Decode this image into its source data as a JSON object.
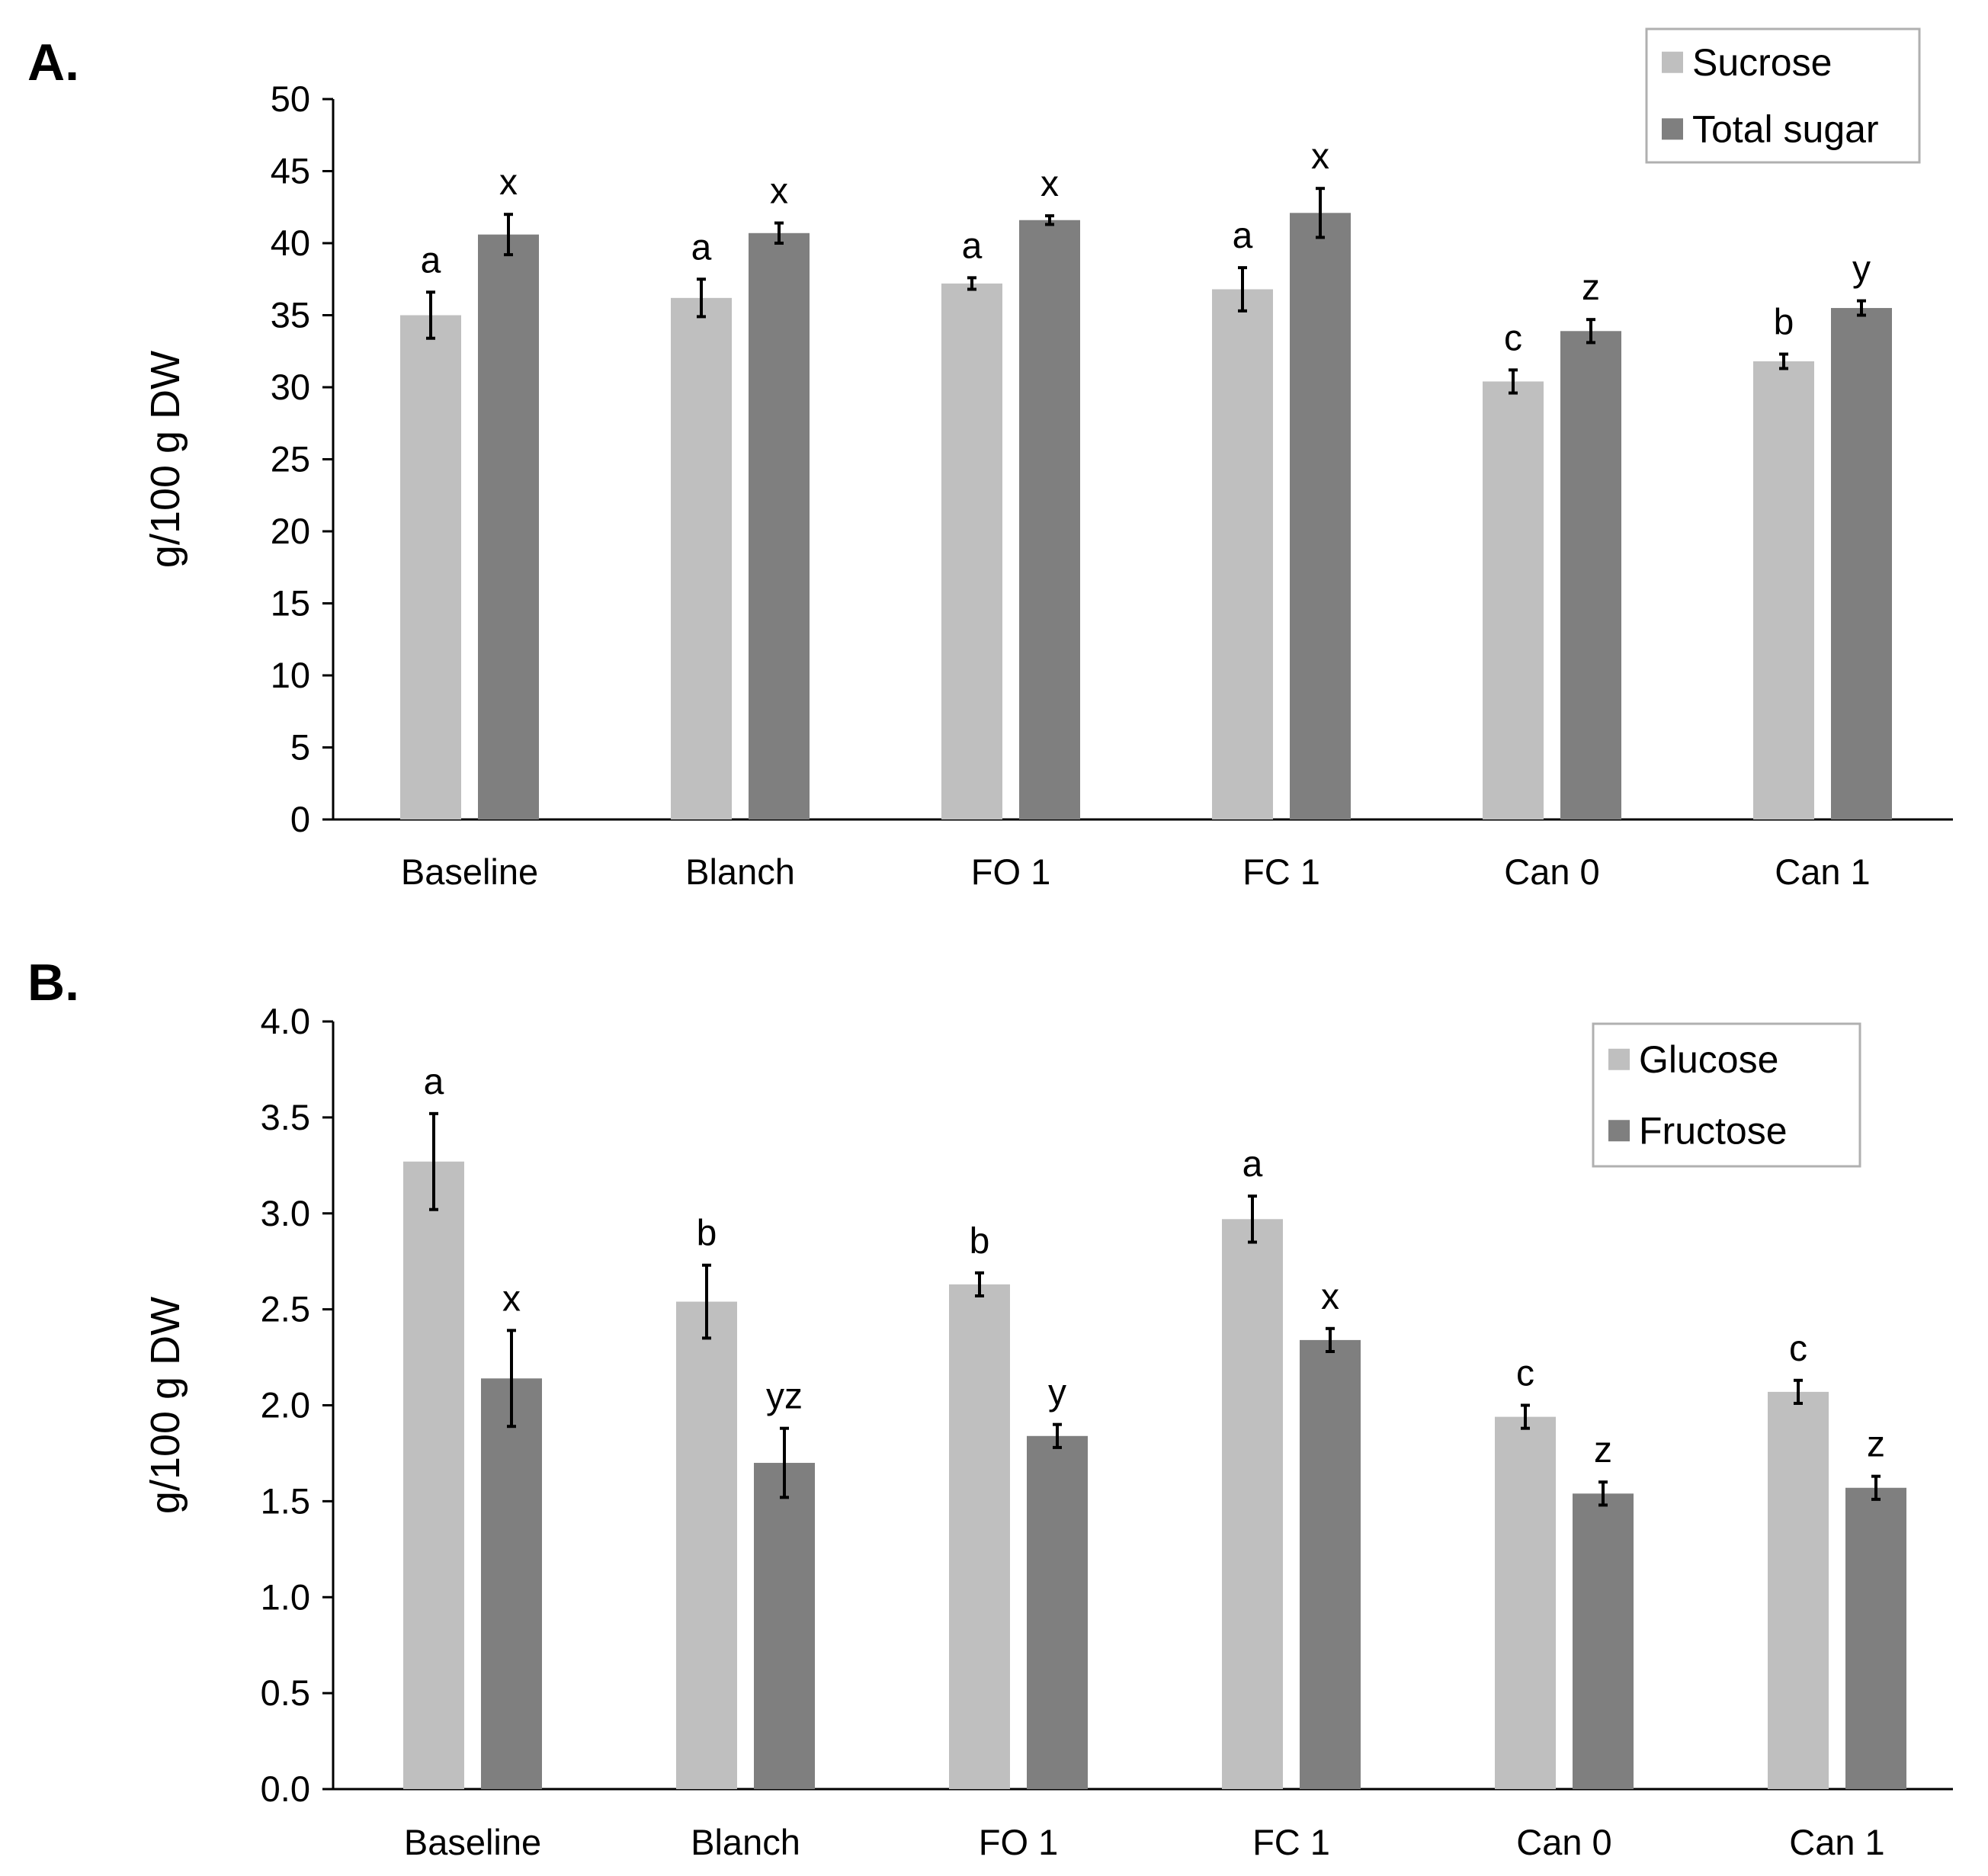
{
  "chart_data": [
    {
      "panel": "A.",
      "type": "bar",
      "ylabel": "g/100 g DW",
      "ylim": [
        0,
        50
      ],
      "yticks": [
        "0",
        "5",
        "10",
        "15",
        "20",
        "25",
        "30",
        "35",
        "40",
        "45",
        "50"
      ],
      "categories": [
        "Baseline",
        "Blanch",
        "FO 1",
        "FC 1",
        "Can 0",
        "Can 1"
      ],
      "legend_position": "top-right",
      "series": [
        {
          "name": "Sucrose",
          "color": "#bfbfbf",
          "values": [
            35.0,
            36.2,
            37.2,
            36.8,
            30.4,
            31.8
          ],
          "errors": [
            1.6,
            1.3,
            0.4,
            1.5,
            0.8,
            0.5
          ],
          "letters": [
            "a",
            "a",
            "a",
            "a",
            "c",
            "b"
          ]
        },
        {
          "name": "Total sugar",
          "color": "#7f7f7f",
          "values": [
            40.6,
            40.7,
            41.6,
            42.1,
            33.9,
            35.5
          ],
          "errors": [
            1.4,
            0.7,
            0.3,
            1.7,
            0.8,
            0.5
          ],
          "letters": [
            "x",
            "x",
            "x",
            "x",
            "z",
            "y"
          ]
        }
      ]
    },
    {
      "panel": "B.",
      "type": "bar",
      "ylabel": "g/100 g DW",
      "ylim": [
        0,
        4
      ],
      "yticks": [
        "0.0",
        "0.5",
        "1.0",
        "1.5",
        "2.0",
        "2.5",
        "3.0",
        "3.5",
        "4.0"
      ],
      "categories": [
        "Baseline",
        "Blanch",
        "FO 1",
        "FC 1",
        "Can 0",
        "Can 1"
      ],
      "legend_position": "top-right",
      "series": [
        {
          "name": "Glucose",
          "color": "#bfbfbf",
          "values": [
            3.27,
            2.54,
            2.63,
            2.97,
            1.94,
            2.07
          ],
          "errors": [
            0.25,
            0.19,
            0.06,
            0.12,
            0.06,
            0.06
          ],
          "letters": [
            "a",
            "b",
            "b",
            "a",
            "c",
            "c"
          ]
        },
        {
          "name": "Fructose",
          "color": "#7f7f7f",
          "values": [
            2.14,
            1.7,
            1.84,
            2.34,
            1.54,
            1.57
          ],
          "errors": [
            0.25,
            0.18,
            0.06,
            0.06,
            0.06,
            0.06
          ],
          "letters": [
            "x",
            "yz",
            "y",
            "x",
            "z",
            "z"
          ]
        }
      ]
    }
  ]
}
